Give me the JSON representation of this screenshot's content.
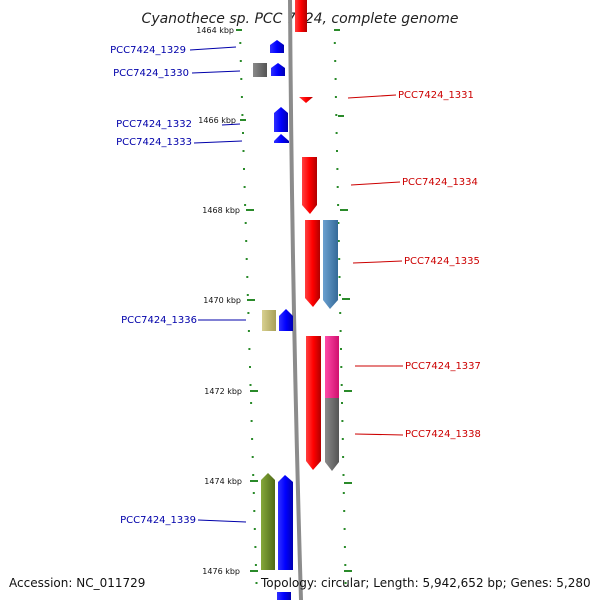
{
  "title": "Cyanothece sp. PCC 7424, complete genome",
  "footer": {
    "accession": "Accession: NC_011729",
    "summary": "Topology: circular; Length: 5,942,652 bp; Genes: 5,280"
  },
  "ticks": [
    "1464 kbp",
    "1466 kbp",
    "1468 kbp",
    "1470 kbp",
    "1472 kbp",
    "1474 kbp",
    "1476 kbp"
  ],
  "genes": [
    {
      "label": "PCC7424_1329",
      "strand": "forward",
      "color": "#0000ff"
    },
    {
      "label": "PCC7424_1330",
      "strand": "forward",
      "color": "#0000ff"
    },
    {
      "label": "PCC7424_1331",
      "strand": "reverse",
      "color": "#ff0000"
    },
    {
      "label": "PCC7424_1332",
      "strand": "forward",
      "color": "#0000ff"
    },
    {
      "label": "PCC7424_1333",
      "strand": "forward",
      "color": "#0000ff"
    },
    {
      "label": "PCC7424_1334",
      "strand": "reverse",
      "color": "#ff0000"
    },
    {
      "label": "PCC7424_1335",
      "strand": "reverse",
      "color": "#ff0000"
    },
    {
      "label": "PCC7424_1336",
      "strand": "forward",
      "color": "#0000ff"
    },
    {
      "label": "PCC7424_1337",
      "strand": "reverse",
      "color": "#ff0000"
    },
    {
      "label": "PCC7424_1338",
      "strand": "reverse",
      "color": "#ff0000"
    },
    {
      "label": "PCC7424_1339",
      "strand": "forward",
      "color": "#0000ff"
    }
  ],
  "colors": {
    "backbone": "#8c8c8c",
    "tick": "#2a8a2a",
    "forward_label": "#0000aa",
    "reverse_label": "#cc0000",
    "cog_steelblue": "#4682b4",
    "cog_magenta": "#ff1493",
    "cog_gray": "#707070",
    "cog_khaki": "#c8c070",
    "cog_olive": "#6b8e23"
  }
}
